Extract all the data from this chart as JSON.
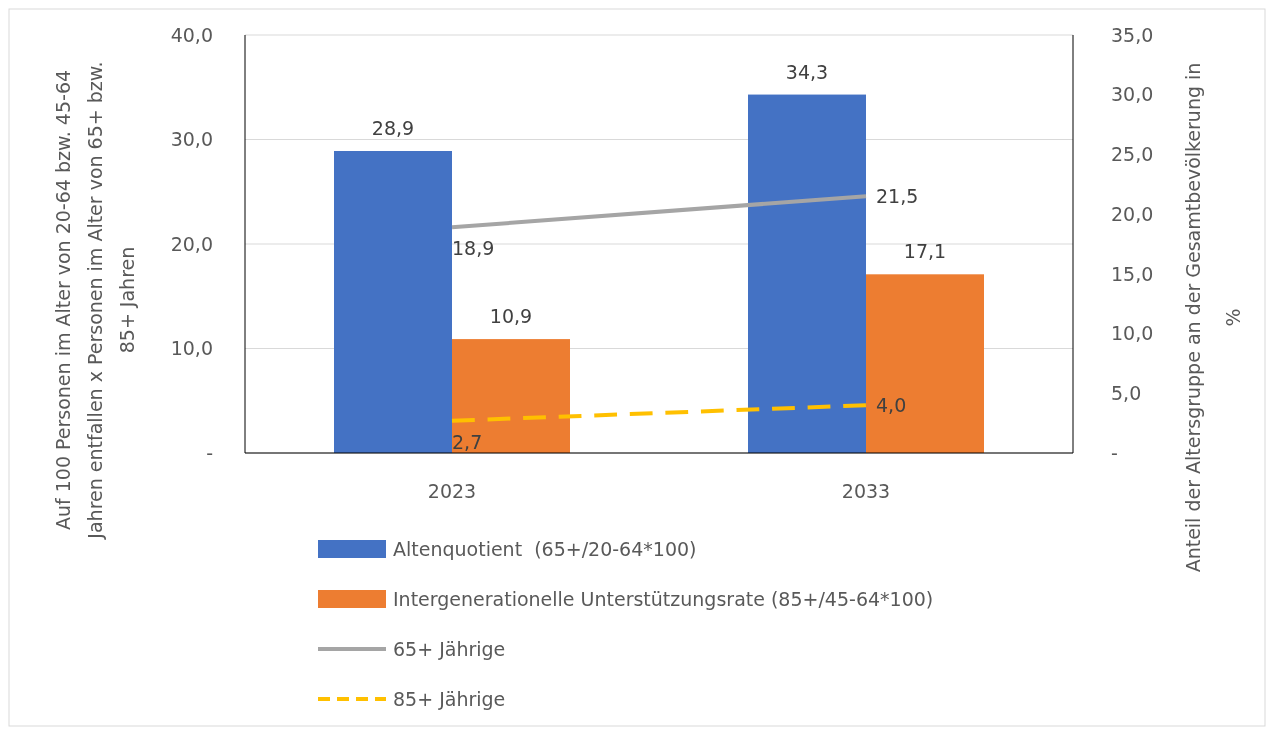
{
  "chart_data": {
    "type": "bar",
    "categories": [
      "2023",
      "2033"
    ],
    "ylabel": "Auf 100 Personen im Alter von 20-64 bzw. 45-64 Jahren entfallen x Personen im Alter von 65+ bzw. 85+ Jahren",
    "y2label": "Anteil der Altersgruppe an der Gesamtbevölkerung in %",
    "ylim": [
      0,
      40
    ],
    "yticks": [
      {
        "value": 0,
        "label": "-"
      },
      {
        "value": 10,
        "label": "10,0"
      },
      {
        "value": 20,
        "label": "20,0"
      },
      {
        "value": 30,
        "label": "30,0"
      },
      {
        "value": 40,
        "label": "40,0"
      }
    ],
    "y2lim": [
      0,
      35
    ],
    "y2ticks": [
      {
        "value": 0,
        "label": "-"
      },
      {
        "value": 5,
        "label": "5,0"
      },
      {
        "value": 10,
        "label": "10,0"
      },
      {
        "value": 15,
        "label": "15,0"
      },
      {
        "value": 20,
        "label": "20,0"
      },
      {
        "value": 25,
        "label": "25,0"
      },
      {
        "value": 30,
        "label": "30,0"
      },
      {
        "value": 35,
        "label": "35,0"
      }
    ],
    "series": [
      {
        "name": "Altenquotient  (65+/20-64*100)",
        "color": "#4472c4",
        "values": [
          28.9,
          34.3
        ],
        "value_labels": [
          "28,9",
          "34,3"
        ]
      },
      {
        "name": "Intergenerationelle Unterstützungsrate (85+/45-64*100)",
        "color": "#ed7d31",
        "values": [
          10.9,
          17.1
        ],
        "value_labels": [
          "10,9",
          "17,1"
        ]
      },
      {
        "name": "65+ Jährige",
        "type": "line",
        "axis": "y2",
        "color": "#a5a5a5",
        "line_style": "solid",
        "values": [
          18.9,
          21.5
        ],
        "value_labels": [
          "18,9",
          "21,5"
        ]
      },
      {
        "name": "85+ Jährige",
        "type": "line",
        "axis": "y2",
        "color": "#ffc000",
        "line_style": "dashed",
        "values": [
          2.7,
          4.0
        ],
        "value_labels": [
          "2,7",
          "4,0"
        ]
      }
    ],
    "grid": "y",
    "legend": "bottom",
    "marker": "none"
  }
}
